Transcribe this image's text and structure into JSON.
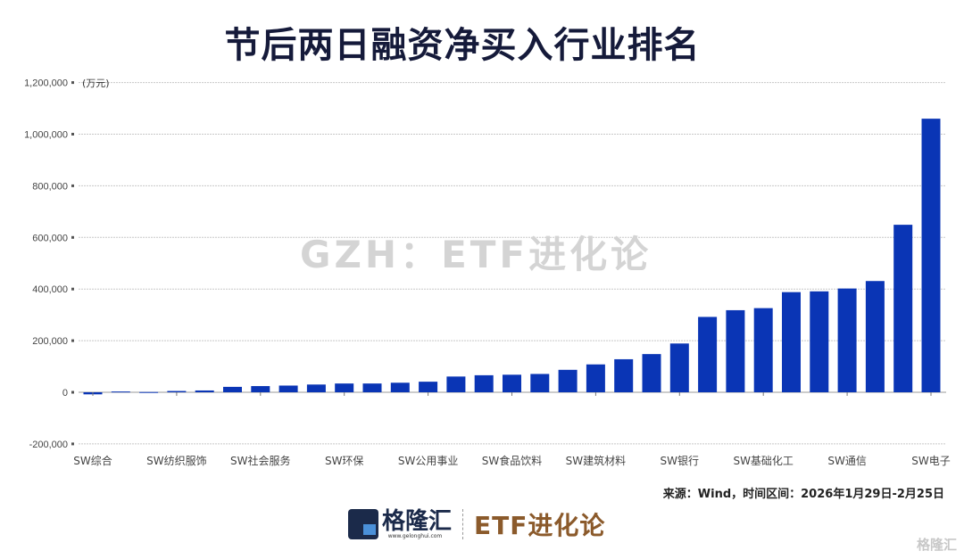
{
  "chart_data": {
    "type": "bar",
    "title": "节后两日融资净买入行业排名",
    "unit_label": "(万元)",
    "categories": [
      "SW综合",
      "",
      "",
      "SW纺织服饰",
      "",
      "",
      "SW社会服务",
      "",
      "",
      "SW环保",
      "",
      "",
      "SW公用事业",
      "",
      "",
      "SW食品饮料",
      "",
      "",
      "SW建筑材料",
      "",
      "",
      "SW银行",
      "",
      "",
      "SW基础化工",
      "",
      "",
      "SW通信",
      "",
      "",
      "SW电子"
    ],
    "values": [
      -8000,
      3000,
      1000,
      5000,
      7000,
      21000,
      24000,
      26000,
      30000,
      34000,
      34000,
      37000,
      41000,
      61000,
      66000,
      68000,
      71000,
      87000,
      108000,
      128000,
      148000,
      189000,
      292000,
      318000,
      326000,
      388000,
      391000,
      402000,
      431000,
      649000,
      1060000
    ],
    "ylim": [
      -200000,
      1200000
    ],
    "yticks": [
      -200000,
      0,
      200000,
      400000,
      600000,
      800000,
      1000000,
      1200000
    ],
    "ytick_labels": [
      "-200,000",
      "0",
      "200,000",
      "400,000",
      "600,000",
      "800,000",
      "1,000,000",
      "1,200,000"
    ],
    "grid": true,
    "bar_color": "#0a35b5"
  },
  "watermark": "GZH：ETF进化论",
  "source": "来源：Wind，时间区间：2026年1月29日-2月25日",
  "logo": {
    "name": "格隆汇",
    "url": "www.gelonghui.com",
    "brand": "ETF进化论",
    "corner": "格隆汇"
  }
}
